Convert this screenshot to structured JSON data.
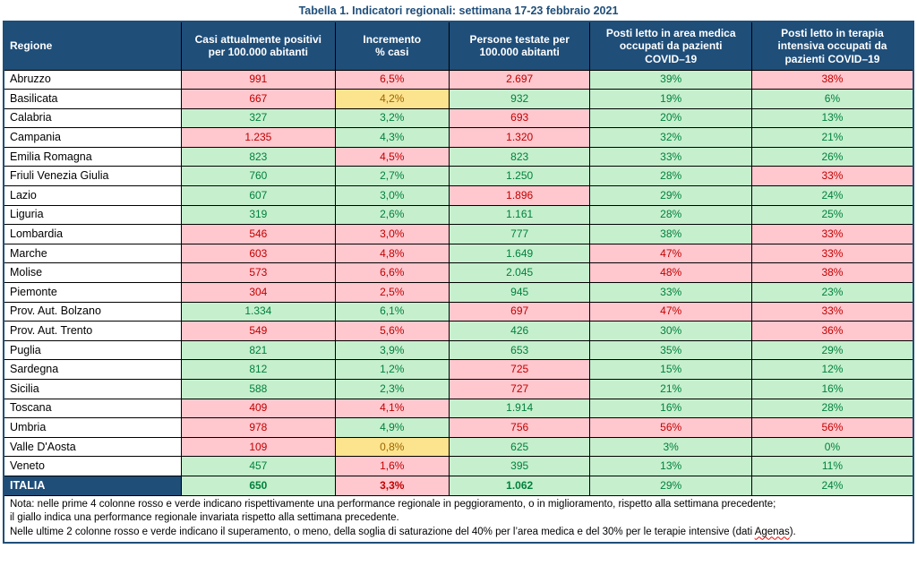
{
  "title": "Tabella 1. Indicatori regionali: settimana 17-23 febbraio 2021",
  "columns": [
    {
      "label": "Regione"
    },
    {
      "label": "Casi attualmente positivi\nper 100.000 abitanti"
    },
    {
      "label": "Incremento\n% casi"
    },
    {
      "label": "Persone testate per\n100.000 abitanti"
    },
    {
      "label": "Posti letto in area medica\noccupati da pazienti\nCOVID–19"
    },
    {
      "label": "Posti letto in terapia\nintensiva occupati da\npazienti COVID–19"
    }
  ],
  "colors": {
    "header_bg": "#1F4E79",
    "title_text": "#1F4E79",
    "negative_bg": "#FFC7CE",
    "negative_text": "#C00000",
    "positive_bg": "#C6EFCE",
    "positive_text": "#00813B",
    "neutral_bg": "#FCE38E",
    "neutral_text": "#9C6500",
    "grid_border": "#000000"
  },
  "rows": [
    {
      "region": "Abruzzo",
      "cells": [
        {
          "v": "991",
          "c": "r"
        },
        {
          "v": "6,5%",
          "c": "r"
        },
        {
          "v": "2.697",
          "c": "r"
        },
        {
          "v": "39%",
          "c": "g"
        },
        {
          "v": "38%",
          "c": "r"
        }
      ]
    },
    {
      "region": "Basilicata",
      "cells": [
        {
          "v": "667",
          "c": "r"
        },
        {
          "v": "4,2%",
          "c": "y"
        },
        {
          "v": "932",
          "c": "g"
        },
        {
          "v": "19%",
          "c": "g"
        },
        {
          "v": "6%",
          "c": "g"
        }
      ]
    },
    {
      "region": "Calabria",
      "cells": [
        {
          "v": "327",
          "c": "g"
        },
        {
          "v": "3,2%",
          "c": "g"
        },
        {
          "v": "693",
          "c": "r"
        },
        {
          "v": "20%",
          "c": "g"
        },
        {
          "v": "13%",
          "c": "g"
        }
      ]
    },
    {
      "region": "Campania",
      "cells": [
        {
          "v": "1.235",
          "c": "r"
        },
        {
          "v": "4,3%",
          "c": "g"
        },
        {
          "v": "1.320",
          "c": "r"
        },
        {
          "v": "32%",
          "c": "g"
        },
        {
          "v": "21%",
          "c": "g"
        }
      ]
    },
    {
      "region": "Emilia Romagna",
      "cells": [
        {
          "v": "823",
          "c": "g"
        },
        {
          "v": "4,5%",
          "c": "r"
        },
        {
          "v": "823",
          "c": "g"
        },
        {
          "v": "33%",
          "c": "g"
        },
        {
          "v": "26%",
          "c": "g"
        }
      ]
    },
    {
      "region": "Friuli Venezia Giulia",
      "cells": [
        {
          "v": "760",
          "c": "g"
        },
        {
          "v": "2,7%",
          "c": "g"
        },
        {
          "v": "1.250",
          "c": "g"
        },
        {
          "v": "28%",
          "c": "g"
        },
        {
          "v": "33%",
          "c": "r"
        }
      ]
    },
    {
      "region": "Lazio",
      "cells": [
        {
          "v": "607",
          "c": "g"
        },
        {
          "v": "3,0%",
          "c": "g"
        },
        {
          "v": "1.896",
          "c": "r"
        },
        {
          "v": "29%",
          "c": "g"
        },
        {
          "v": "24%",
          "c": "g"
        }
      ]
    },
    {
      "region": "Liguria",
      "cells": [
        {
          "v": "319",
          "c": "g"
        },
        {
          "v": "2,6%",
          "c": "g"
        },
        {
          "v": "1.161",
          "c": "g"
        },
        {
          "v": "28%",
          "c": "g"
        },
        {
          "v": "25%",
          "c": "g"
        }
      ]
    },
    {
      "region": "Lombardia",
      "cells": [
        {
          "v": "546",
          "c": "r"
        },
        {
          "v": "3,0%",
          "c": "r"
        },
        {
          "v": "777",
          "c": "g"
        },
        {
          "v": "38%",
          "c": "g"
        },
        {
          "v": "33%",
          "c": "r"
        }
      ]
    },
    {
      "region": "Marche",
      "cells": [
        {
          "v": "603",
          "c": "r"
        },
        {
          "v": "4,8%",
          "c": "r"
        },
        {
          "v": "1.649",
          "c": "g"
        },
        {
          "v": "47%",
          "c": "r"
        },
        {
          "v": "33%",
          "c": "r"
        }
      ]
    },
    {
      "region": "Molise",
      "cells": [
        {
          "v": "573",
          "c": "r"
        },
        {
          "v": "6,6%",
          "c": "r"
        },
        {
          "v": "2.045",
          "c": "g"
        },
        {
          "v": "48%",
          "c": "r"
        },
        {
          "v": "38%",
          "c": "r"
        }
      ]
    },
    {
      "region": "Piemonte",
      "cells": [
        {
          "v": "304",
          "c": "r"
        },
        {
          "v": "2,5%",
          "c": "r"
        },
        {
          "v": "945",
          "c": "g"
        },
        {
          "v": "33%",
          "c": "g"
        },
        {
          "v": "23%",
          "c": "g"
        }
      ]
    },
    {
      "region": "Prov. Aut. Bolzano",
      "cells": [
        {
          "v": "1.334",
          "c": "g"
        },
        {
          "v": "6,1%",
          "c": "g"
        },
        {
          "v": "697",
          "c": "r"
        },
        {
          "v": "47%",
          "c": "r"
        },
        {
          "v": "33%",
          "c": "r"
        }
      ]
    },
    {
      "region": "Prov. Aut. Trento",
      "cells": [
        {
          "v": "549",
          "c": "r"
        },
        {
          "v": "5,6%",
          "c": "r"
        },
        {
          "v": "426",
          "c": "g"
        },
        {
          "v": "30%",
          "c": "g"
        },
        {
          "v": "36%",
          "c": "r"
        }
      ]
    },
    {
      "region": "Puglia",
      "cells": [
        {
          "v": "821",
          "c": "g"
        },
        {
          "v": "3,9%",
          "c": "g"
        },
        {
          "v": "653",
          "c": "g"
        },
        {
          "v": "35%",
          "c": "g"
        },
        {
          "v": "29%",
          "c": "g"
        }
      ]
    },
    {
      "region": "Sardegna",
      "cells": [
        {
          "v": "812",
          "c": "g"
        },
        {
          "v": "1,2%",
          "c": "g"
        },
        {
          "v": "725",
          "c": "r"
        },
        {
          "v": "15%",
          "c": "g"
        },
        {
          "v": "12%",
          "c": "g"
        }
      ]
    },
    {
      "region": "Sicilia",
      "cells": [
        {
          "v": "588",
          "c": "g"
        },
        {
          "v": "2,3%",
          "c": "g"
        },
        {
          "v": "727",
          "c": "r"
        },
        {
          "v": "21%",
          "c": "g"
        },
        {
          "v": "16%",
          "c": "g"
        }
      ]
    },
    {
      "region": "Toscana",
      "cells": [
        {
          "v": "409",
          "c": "r"
        },
        {
          "v": "4,1%",
          "c": "r"
        },
        {
          "v": "1.914",
          "c": "g"
        },
        {
          "v": "16%",
          "c": "g"
        },
        {
          "v": "28%",
          "c": "g"
        }
      ]
    },
    {
      "region": "Umbria",
      "cells": [
        {
          "v": "978",
          "c": "r"
        },
        {
          "v": "4,9%",
          "c": "g"
        },
        {
          "v": "756",
          "c": "r"
        },
        {
          "v": "56%",
          "c": "r"
        },
        {
          "v": "56%",
          "c": "r"
        }
      ]
    },
    {
      "region": "Valle D'Aosta",
      "cells": [
        {
          "v": "109",
          "c": "r"
        },
        {
          "v": "0,8%",
          "c": "y"
        },
        {
          "v": "625",
          "c": "g"
        },
        {
          "v": "3%",
          "c": "g"
        },
        {
          "v": "0%",
          "c": "g"
        }
      ]
    },
    {
      "region": "Veneto",
      "cells": [
        {
          "v": "457",
          "c": "g"
        },
        {
          "v": "1,6%",
          "c": "r"
        },
        {
          "v": "395",
          "c": "g"
        },
        {
          "v": "13%",
          "c": "g"
        },
        {
          "v": "11%",
          "c": "g"
        }
      ]
    },
    {
      "region": "ITALIA",
      "is_total": true,
      "cells": [
        {
          "v": "650",
          "c": "g",
          "b": true
        },
        {
          "v": "3,3%",
          "c": "r",
          "b": true
        },
        {
          "v": "1.062",
          "c": "g",
          "b": true
        },
        {
          "v": "29%",
          "c": "g"
        },
        {
          "v": "24%",
          "c": "g"
        }
      ]
    }
  ],
  "note": {
    "line1": "Nota: nelle prime 4 colonne rosso e verde indicano rispettivamente una performance regionale in peggioramento, o in miglioramento, rispetto alla settimana precedente;",
    "line2": "il giallo indica una performance regionale invariata rispetto alla settimana precedente.",
    "line3_before": "Nelle ultime 2 colonne rosso e verde indicano il superamento, o meno, della soglia di saturazione del 40% per l’area medica e del 30% per le terapie intensive (dati ",
    "line3_word": "Agenas",
    "line3_after": ")."
  }
}
